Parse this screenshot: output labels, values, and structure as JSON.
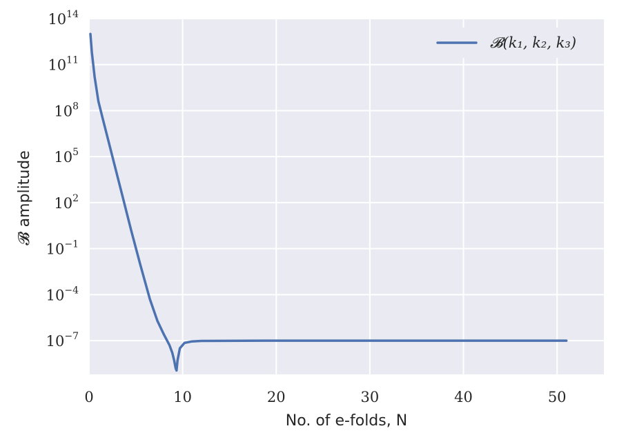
{
  "chart_data": {
    "type": "line",
    "title": "",
    "xlabel": "No. of e-folds, N",
    "ylabel": "𝓑 amplitude",
    "xlim": [
      0,
      55
    ],
    "ylim_log10": [
      -9.2,
      14
    ],
    "yscale": "log",
    "grid": true,
    "legend_position": "top-right",
    "x_ticks": [
      0,
      10,
      20,
      30,
      40,
      50
    ],
    "y_ticks": [
      {
        "base": "10",
        "exp": "14",
        "log10": 14
      },
      {
        "base": "10",
        "exp": "11",
        "log10": 11
      },
      {
        "base": "10",
        "exp": "8",
        "log10": 8
      },
      {
        "base": "10",
        "exp": "5",
        "log10": 5
      },
      {
        "base": "10",
        "exp": "2",
        "log10": 2
      },
      {
        "base": "10",
        "exp": "−1",
        "log10": -1
      },
      {
        "base": "10",
        "exp": "−4",
        "log10": -4
      },
      {
        "base": "10",
        "exp": "−7",
        "log10": -7
      }
    ],
    "series": [
      {
        "name": "𝓑(k₁, k₂, k₃)",
        "color": "#4c72b0",
        "points": [
          [
            0.15,
            13.0
          ],
          [
            0.3,
            11.8
          ],
          [
            0.6,
            10.2
          ],
          [
            1.0,
            8.6
          ],
          [
            1.5,
            7.4
          ],
          [
            2.5,
            5.0
          ],
          [
            3.5,
            2.6
          ],
          [
            4.5,
            0.2
          ],
          [
            5.5,
            -2.1
          ],
          [
            6.5,
            -4.3
          ],
          [
            7.3,
            -5.7
          ],
          [
            8.0,
            -6.6
          ],
          [
            8.6,
            -7.3
          ],
          [
            8.9,
            -7.8
          ],
          [
            9.1,
            -8.3
          ],
          [
            9.25,
            -8.8
          ],
          [
            9.35,
            -8.95
          ],
          [
            9.45,
            -8.3
          ],
          [
            9.7,
            -7.5
          ],
          [
            10.2,
            -7.15
          ],
          [
            11.0,
            -7.05
          ],
          [
            12.0,
            -7.02
          ],
          [
            20.0,
            -7.0
          ],
          [
            51.0,
            -7.0
          ]
        ]
      }
    ]
  }
}
